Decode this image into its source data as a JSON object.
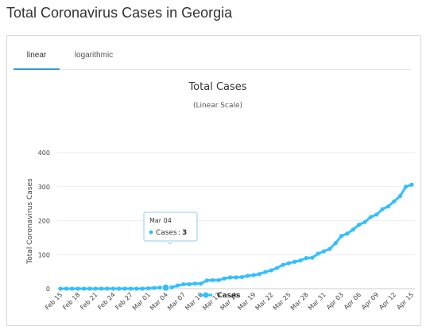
{
  "page": {
    "title": "Total Coronavirus Cases in Georgia"
  },
  "tabs": [
    {
      "label": "linear",
      "active": true
    },
    {
      "label": "logarithmic",
      "active": false
    }
  ],
  "tooltip": {
    "date": "Mar 04",
    "series": "Cases",
    "value": "3"
  },
  "colors": {
    "series": "#33bfff",
    "tab_active": "#2f9bdc"
  },
  "chart_data": {
    "type": "line",
    "title": "Total Cases",
    "subtitle": "(Linear Scale)",
    "ylabel": "Total Coronavirus Cases",
    "xlabel": "",
    "ylim": [
      0,
      400
    ],
    "yticks": [
      0,
      100,
      200,
      300,
      400
    ],
    "grid": true,
    "legend": "bottom-center",
    "x_tick_labels": [
      "Feb 15",
      "Feb 18",
      "Feb 21",
      "Feb 24",
      "Feb 27",
      "Mar 01",
      "Mar 04",
      "Mar 07",
      "Mar 10",
      "Mar 13",
      "Mar 16",
      "Mar 19",
      "Mar 22",
      "Mar 25",
      "Mar 28",
      "Mar 31",
      "Apr 03",
      "Apr 06",
      "Apr 09",
      "Apr 12",
      "Apr 15"
    ],
    "x": [
      "Feb 15",
      "Feb 16",
      "Feb 17",
      "Feb 18",
      "Feb 19",
      "Feb 20",
      "Feb 21",
      "Feb 22",
      "Feb 23",
      "Feb 24",
      "Feb 25",
      "Feb 26",
      "Feb 27",
      "Feb 28",
      "Feb 29",
      "Mar 01",
      "Mar 02",
      "Mar 03",
      "Mar 04",
      "Mar 05",
      "Mar 06",
      "Mar 07",
      "Mar 08",
      "Mar 09",
      "Mar 10",
      "Mar 11",
      "Mar 12",
      "Mar 13",
      "Mar 14",
      "Mar 15",
      "Mar 16",
      "Mar 17",
      "Mar 18",
      "Mar 19",
      "Mar 20",
      "Mar 21",
      "Mar 22",
      "Mar 23",
      "Mar 24",
      "Mar 25",
      "Mar 26",
      "Mar 27",
      "Mar 28",
      "Mar 29",
      "Mar 30",
      "Mar 31",
      "Apr 01",
      "Apr 02",
      "Apr 03",
      "Apr 04",
      "Apr 05",
      "Apr 06",
      "Apr 07",
      "Apr 08",
      "Apr 09",
      "Apr 10",
      "Apr 11",
      "Apr 12",
      "Apr 13",
      "Apr 14",
      "Apr 15"
    ],
    "series": [
      {
        "name": "Cases",
        "values": [
          0,
          0,
          0,
          0,
          0,
          0,
          0,
          0,
          0,
          0,
          0,
          0,
          0,
          0,
          0,
          1,
          2,
          3,
          3,
          4,
          9,
          13,
          13,
          15,
          15,
          24,
          25,
          25,
          30,
          33,
          33,
          34,
          38,
          40,
          43,
          49,
          54,
          61,
          70,
          75,
          79,
          83,
          90,
          91,
          103,
          110,
          117,
          134,
          155,
          162,
          174,
          188,
          196,
          211,
          218,
          234,
          242,
          257,
          272,
          300,
          306
        ]
      }
    ]
  }
}
